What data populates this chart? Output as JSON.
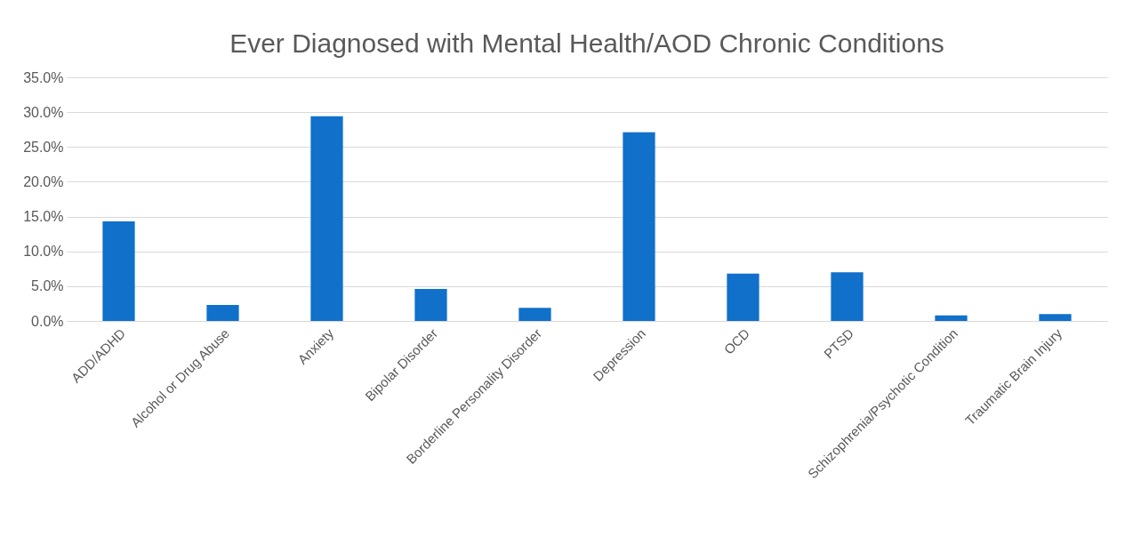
{
  "chart_data": {
    "type": "bar",
    "title": "Ever Diagnosed with Mental Health/AOD Chronic Conditions",
    "categories": [
      "ADD/ADHD",
      "Alcohol or Drug Abuse",
      "Anxiety",
      "Bipolar Disorder",
      "Borderline Personality Disorder",
      "Depression",
      "OCD",
      "PTSD",
      "Schizophrenia/Psychotic Condition",
      "Traumatic Brain Injury"
    ],
    "values": [
      14.3,
      2.3,
      29.4,
      4.6,
      1.9,
      27.1,
      6.8,
      7.0,
      0.8,
      1.0
    ],
    "color": "#1170c9",
    "ylim": [
      0,
      35
    ],
    "yticks": [
      {
        "value": 0,
        "label": "0.0%"
      },
      {
        "value": 5,
        "label": "5.0%"
      },
      {
        "value": 10,
        "label": "10.0%"
      },
      {
        "value": 15,
        "label": "15.0%"
      },
      {
        "value": 20,
        "label": "20.0%"
      },
      {
        "value": 25,
        "label": "25.0%"
      },
      {
        "value": 30,
        "label": "30.0%"
      },
      {
        "value": 35,
        "label": "35.0%"
      }
    ],
    "grid": "y"
  }
}
